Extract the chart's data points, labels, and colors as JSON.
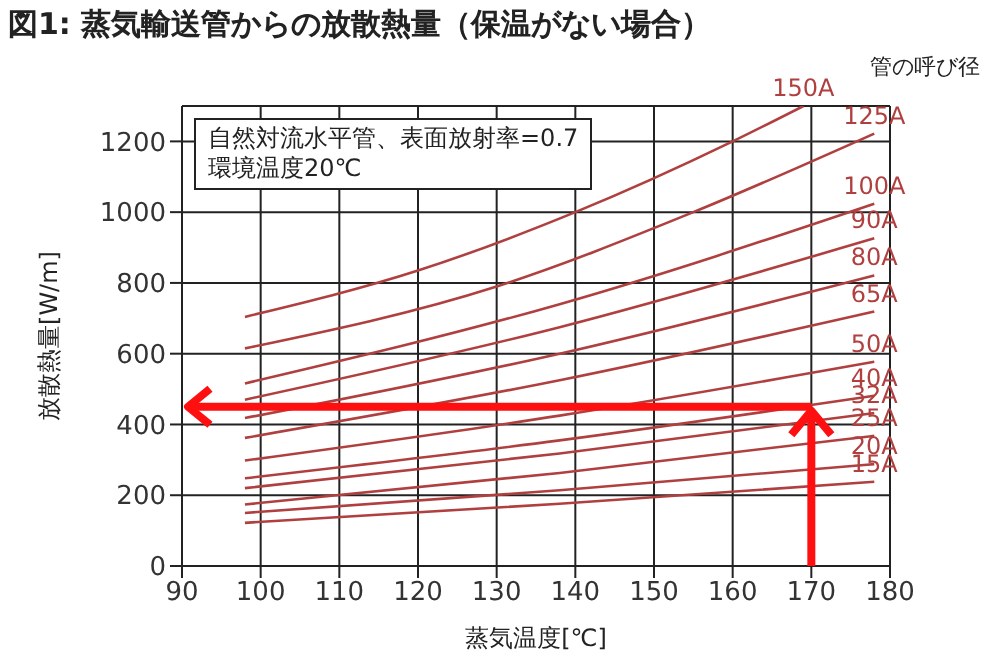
{
  "chart_data": {
    "type": "line",
    "title": "図1: 蒸気輸送管からの放散熱量（保温がない場合）",
    "xlabel": "蒸気温度[℃]",
    "ylabel": "放散熱量[W/m]",
    "legend_title": "管の呼び径",
    "annotations": [
      "自然対流水平管、表面放射率=0.7",
      "環境温度20℃"
    ],
    "xlim": [
      90,
      180
    ],
    "xticks": [
      90,
      100,
      110,
      120,
      130,
      140,
      150,
      160,
      170,
      180
    ],
    "ylim": [
      0,
      1300
    ],
    "yticks": [
      0,
      200,
      400,
      600,
      800,
      1000,
      1200
    ],
    "ref_lines": [
      {
        "axis": "y",
        "value": 450,
        "color": "#ff1010"
      },
      {
        "axis": "x",
        "value": 170,
        "color": "#ff1010"
      }
    ],
    "grid": true,
    "legend": false,
    "marker": "none",
    "line_style": "solid",
    "series": [
      {
        "name": "150A",
        "color": "#b04040",
        "x": [
          98,
          120,
          140,
          160,
          169
        ],
        "values": [
          704,
          835,
          1000,
          1200,
          1300
        ]
      },
      {
        "name": "125A",
        "color": "#b04040",
        "x": [
          98,
          130,
          155,
          178
        ],
        "values": [
          615,
          790,
          1000,
          1222
        ]
      },
      {
        "name": "100A",
        "color": "#b04040",
        "x": [
          98,
          138,
          178
        ],
        "values": [
          516,
          740,
          1024
        ]
      },
      {
        "name": "90A",
        "color": "#b04040",
        "x": [
          98,
          138,
          178
        ],
        "values": [
          470,
          675,
          926
        ]
      },
      {
        "name": "80A",
        "color": "#b04040",
        "x": [
          98,
          138,
          178
        ],
        "values": [
          418,
          600,
          821
        ]
      },
      {
        "name": "65A",
        "color": "#b04040",
        "x": [
          98,
          138,
          178
        ],
        "values": [
          362,
          525,
          719
        ]
      },
      {
        "name": "50A",
        "color": "#b04040",
        "x": [
          98,
          138,
          178
        ],
        "values": [
          298,
          425,
          577
        ]
      },
      {
        "name": "40A",
        "color": "#b04040",
        "x": [
          98,
          138,
          178
        ],
        "values": [
          248,
          355,
          481
        ]
      },
      {
        "name": "32A",
        "color": "#b04040",
        "x": [
          98,
          138,
          178
        ],
        "values": [
          220,
          318,
          432
        ]
      },
      {
        "name": "25A",
        "color": "#b04040",
        "x": [
          98,
          138,
          178
        ],
        "values": [
          174,
          263,
          368
        ]
      },
      {
        "name": "20A",
        "color": "#b04040",
        "x": [
          98,
          138,
          178
        ],
        "values": [
          150,
          214,
          288
        ]
      },
      {
        "name": "15A",
        "color": "#b04040",
        "x": [
          98,
          138,
          178
        ],
        "values": [
          122,
          176,
          238
        ]
      }
    ]
  }
}
